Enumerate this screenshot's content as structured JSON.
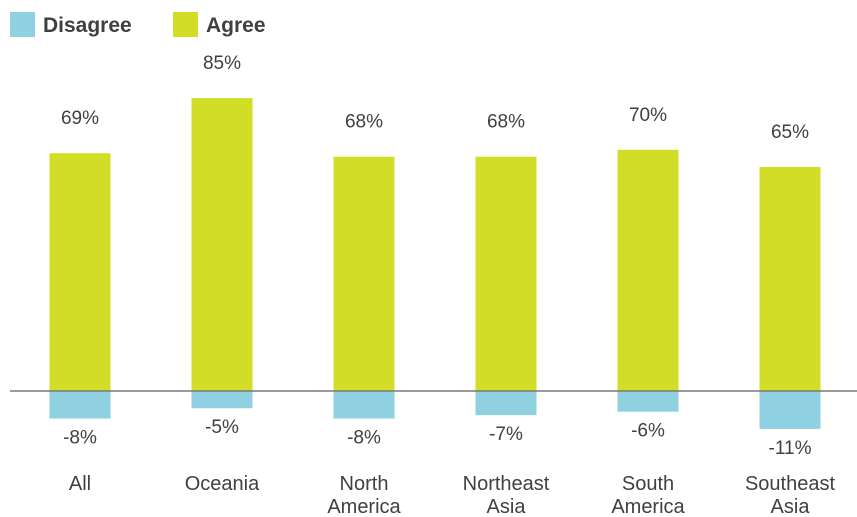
{
  "chart_data": {
    "type": "bar",
    "title": "",
    "xlabel": "",
    "ylabel": "",
    "categories": [
      [
        "All"
      ],
      [
        "Oceania"
      ],
      [
        "North",
        "America"
      ],
      [
        "Northeast",
        "Asia"
      ],
      [
        "South",
        "America"
      ],
      [
        "Southeast",
        "Asia"
      ]
    ],
    "series": [
      {
        "name": "Disagree",
        "color": "#8fd1e0",
        "values": [
          -8,
          -5,
          -8,
          -7,
          -6,
          -11
        ],
        "labels": [
          "-8%",
          "-5%",
          "-8%",
          "-7%",
          "-6%",
          "-11%"
        ]
      },
      {
        "name": "Agree",
        "color": "#d1dd26",
        "values": [
          69,
          85,
          68,
          68,
          70,
          65
        ],
        "labels": [
          "69%",
          "85%",
          "68%",
          "68%",
          "70%",
          "65%"
        ]
      }
    ],
    "ylim": [
      -11,
      85
    ],
    "grid": false,
    "legend_position": "top-left",
    "baseline_color": "#7a7a7a"
  }
}
